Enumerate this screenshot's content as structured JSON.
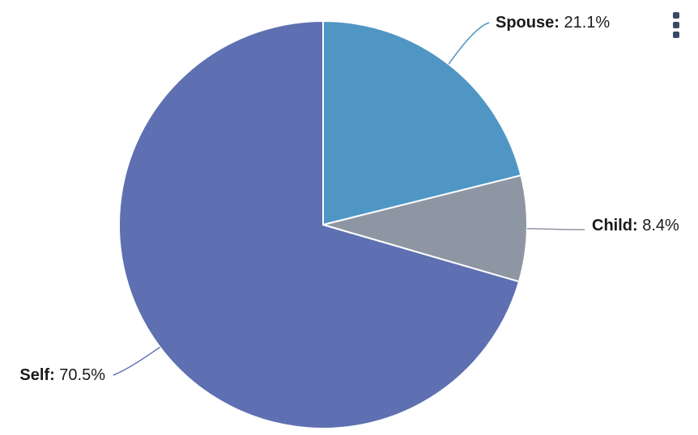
{
  "chart_data": {
    "type": "pie",
    "title": "",
    "slices": [
      {
        "name": "Spouse",
        "value": 21.1,
        "label": "21.1%",
        "color": "#4f96c4"
      },
      {
        "name": "Child",
        "value": 8.4,
        "label": "8.4%",
        "color": "#8f96a3"
      },
      {
        "name": "Self",
        "value": 70.5,
        "label": "70.5%",
        "color": "#5e70b1"
      }
    ],
    "legend": "none",
    "data_labels": "outside with connectors"
  },
  "menu": {
    "icon": "menu-dots-icon"
  }
}
